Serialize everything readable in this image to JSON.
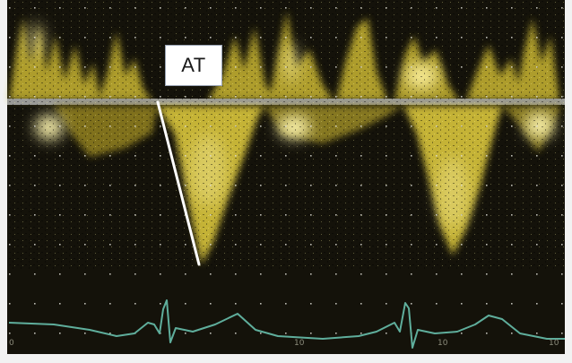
{
  "annotation": {
    "label": "AT"
  },
  "ecg_axis_labels": [
    "0",
    "10",
    "10",
    "10"
  ],
  "colors": {
    "background": "#121008",
    "doppler": "#e6d23c",
    "baseline": "#9a9a96",
    "ecg": "#5fae9c",
    "annotation_line": "#ffffff"
  }
}
